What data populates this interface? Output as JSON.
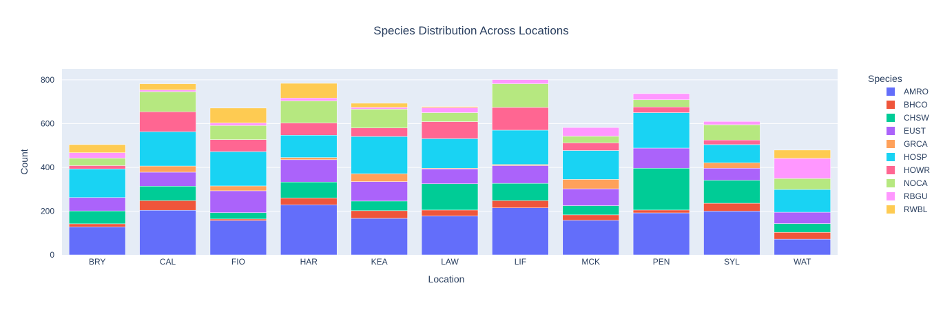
{
  "chart_data": {
    "type": "bar",
    "stacked": true,
    "title": "Species Distribution Across Locations",
    "xlabel": "Location",
    "ylabel": "Count",
    "ylim": [
      0,
      850
    ],
    "yticks": [
      0,
      200,
      400,
      600,
      800
    ],
    "grid": true,
    "legend_title": "Species",
    "legend_position": "right",
    "categories": [
      "BRY",
      "CAL",
      "FIO",
      "HAR",
      "KEA",
      "LAW",
      "LIF",
      "MCK",
      "PEN",
      "SYL",
      "WAT"
    ],
    "series": [
      {
        "name": "AMRO",
        "color": "#636efa",
        "values": [
          128,
          204,
          157,
          229,
          167,
          178,
          215,
          158,
          192,
          200,
          72
        ]
      },
      {
        "name": "BHCO",
        "color": "#EF553B",
        "values": [
          14,
          44,
          7,
          31,
          35,
          27,
          33,
          25,
          13,
          36,
          31
        ]
      },
      {
        "name": "CHSW",
        "color": "#00cc96",
        "values": [
          59,
          66,
          29,
          73,
          44,
          120,
          79,
          42,
          191,
          105,
          40
        ]
      },
      {
        "name": "EUST",
        "color": "#ab63fa",
        "values": [
          61,
          64,
          100,
          102,
          89,
          68,
          81,
          77,
          92,
          55,
          52
        ]
      },
      {
        "name": "GRCA",
        "color": "#FFA15A",
        "values": [
          0,
          28,
          22,
          10,
          36,
          3,
          5,
          43,
          0,
          25,
          0
        ]
      },
      {
        "name": "HOSP",
        "color": "#19d3f3",
        "values": [
          131,
          157,
          157,
          102,
          170,
          135,
          157,
          132,
          162,
          83,
          104
        ]
      },
      {
        "name": "HOWR",
        "color": "#FF6692",
        "values": [
          15,
          91,
          55,
          56,
          39,
          78,
          104,
          35,
          26,
          21,
          0
        ]
      },
      {
        "name": "NOCA",
        "color": "#B6E880",
        "values": [
          34,
          92,
          64,
          101,
          86,
          41,
          108,
          30,
          33,
          70,
          50
        ]
      },
      {
        "name": "RBGU",
        "color": "#FF97FF",
        "values": [
          25,
          8,
          12,
          13,
          8,
          23,
          19,
          40,
          28,
          15,
          92
        ]
      },
      {
        "name": "RWBL",
        "color": "#FECB52",
        "values": [
          37,
          28,
          68,
          67,
          19,
          5,
          0,
          0,
          0,
          0,
          38
        ]
      }
    ]
  }
}
